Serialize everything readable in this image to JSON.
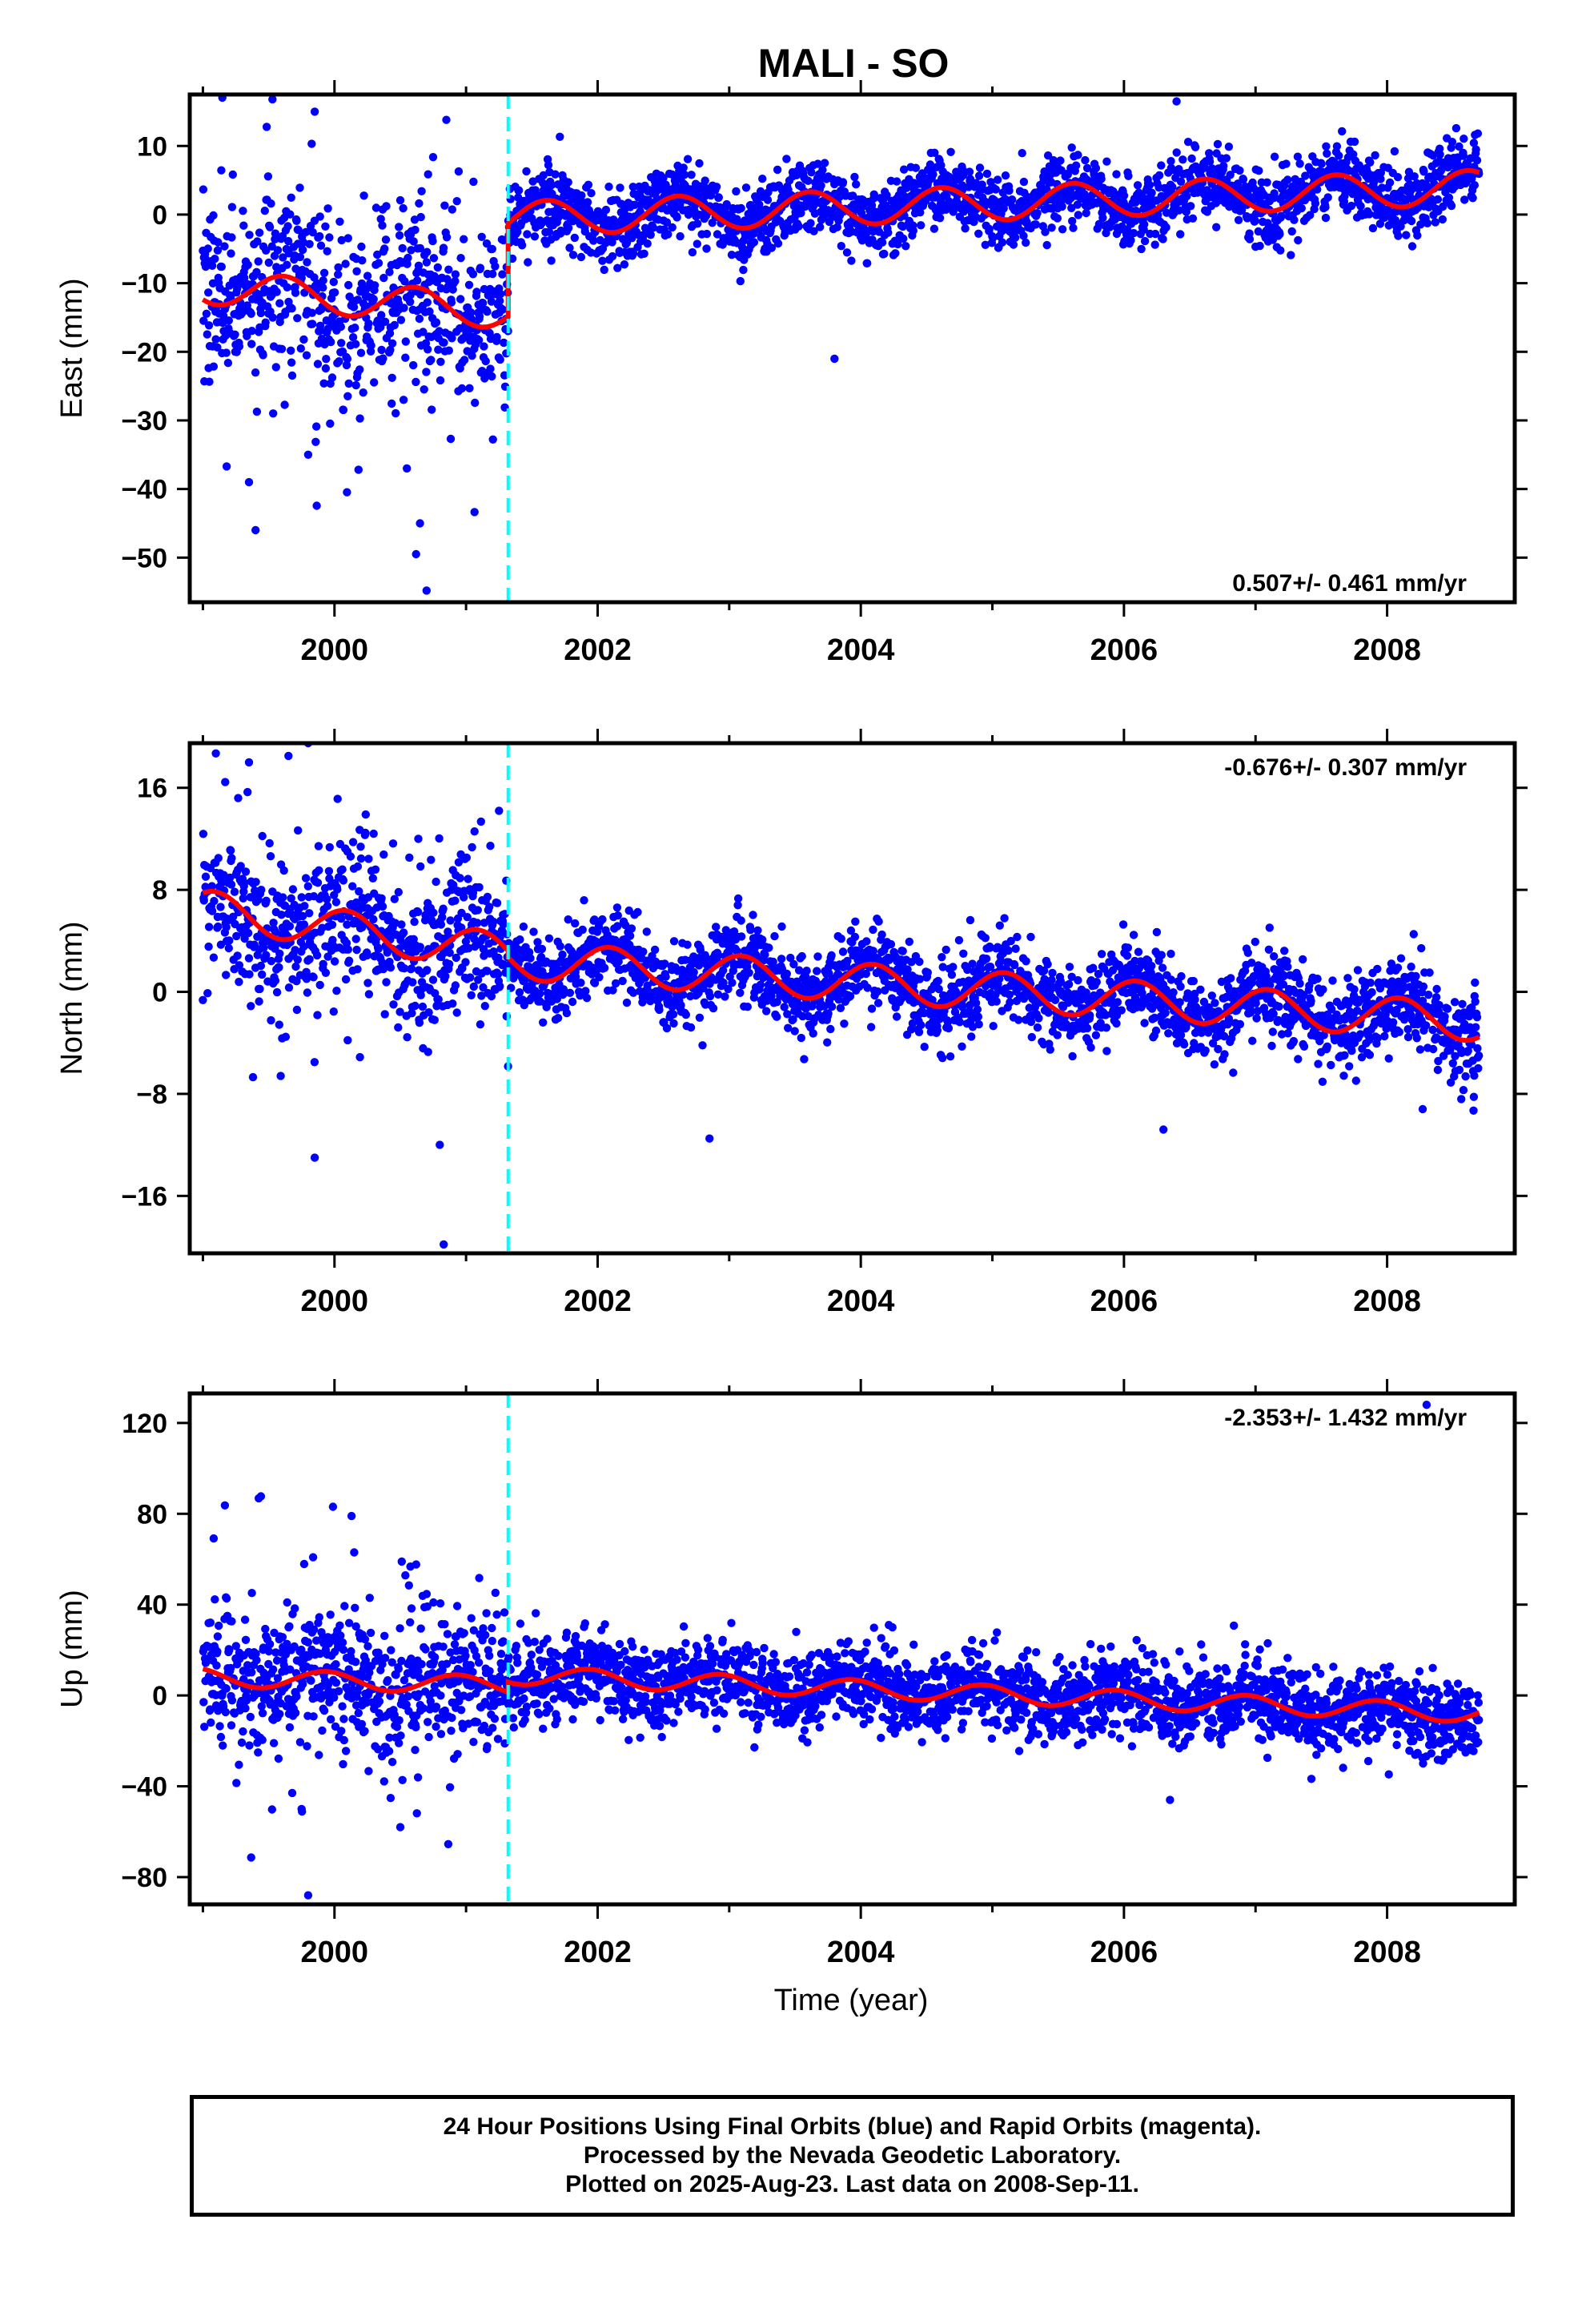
{
  "title": "MALI - SO",
  "x_axis_label": "Time (year)",
  "caption": [
    "24 Hour Positions Using Final Orbits (blue) and Rapid Orbits (magenta).",
    "Processed by the Nevada Geodetic Laboratory.",
    "Plotted on 2025-Aug-23. Last data on 2008-Sep-11."
  ],
  "colors": {
    "points": "#0000ff",
    "model": "#ff0000",
    "offset_line": "#00ffff",
    "frame": "#000000"
  },
  "chart_data": [
    {
      "type": "scatter",
      "name": "east",
      "ylabel": "East (mm)",
      "rate_label": "0.507+/- 0.461 mm/yr",
      "rate_position": "bottom-right",
      "xlim": [
        1998.9,
        2008.97
      ],
      "ylim": [
        -56.5,
        17.5
      ],
      "yticks": [
        -50,
        -40,
        -30,
        -20,
        -10,
        0,
        10
      ],
      "xticks": [
        2000,
        2002,
        2004,
        2006,
        2008
      ],
      "offset_epoch": 2001.32,
      "data_range": [
        1999.0,
        2008.7
      ],
      "model": {
        "pre": [
          -10.5,
          -1.6
        ],
        "post": [
          -0.6,
          0.62
        ],
        "amplitude": 2.5,
        "phase": 4.0
      },
      "scatter": {
        "pre_sd": 6.5,
        "post_sd": 2.6
      },
      "outliers": [
        [
          1999.4,
          -46
        ],
        [
          1999.35,
          -39
        ],
        [
          2000.62,
          -49.5
        ],
        [
          2000.7,
          -54.8
        ],
        [
          2000.65,
          -45
        ],
        [
          1999.85,
          15
        ],
        [
          2006.4,
          16.5
        ],
        [
          2003.8,
          -21
        ],
        [
          2000.55,
          -37
        ],
        [
          1999.8,
          -35
        ],
        [
          2000.85,
          13.8
        ]
      ],
      "grid": false
    },
    {
      "type": "scatter",
      "name": "north",
      "ylabel": "North (mm)",
      "rate_label": "-0.676+/- 0.307 mm/yr",
      "rate_position": "top-right",
      "xlim": [
        1998.9,
        2008.97
      ],
      "ylim": [
        -20.5,
        19.5
      ],
      "yticks": [
        -16,
        -8,
        0,
        8,
        16
      ],
      "xticks": [
        2000,
        2002,
        2004,
        2006,
        2008
      ],
      "offset_epoch": 2001.32,
      "data_range": [
        1999.0,
        2008.7
      ],
      "model": {
        "pre": [
          6.5,
          -1.5
        ],
        "post": [
          2.5,
          -0.66
        ],
        "amplitude": 1.5,
        "phase": 1.0
      },
      "scatter": {
        "pre_sd": 3.0,
        "post_sd": 1.6
      },
      "outliers": [
        [
          1999.85,
          -13
        ],
        [
          2000.83,
          -19.8
        ],
        [
          2000.8,
          -12
        ],
        [
          1999.65,
          18.5
        ],
        [
          1999.8,
          19.5
        ],
        [
          1999.35,
          18
        ],
        [
          2002.85,
          -11.5
        ],
        [
          2006.3,
          -10.8
        ],
        [
          2008.27,
          -9.2
        ]
      ],
      "grid": false
    },
    {
      "type": "scatter",
      "name": "up",
      "ylabel": "Up (mm)",
      "rate_label": "-2.353+/- 1.432 mm/yr",
      "rate_position": "top-right",
      "xlim": [
        1998.9,
        2008.97
      ],
      "ylim": [
        -92,
        133
      ],
      "yticks": [
        -80,
        -40,
        0,
        40,
        80,
        120
      ],
      "xticks": [
        2000,
        2002,
        2004,
        2006,
        2008
      ],
      "offset_epoch": 2001.32,
      "data_range": [
        1999.0,
        2008.7
      ],
      "model": {
        "pre": [
          8.0,
          -1.5
        ],
        "post": [
          9.0,
          -2.3
        ],
        "amplitude": 4.0,
        "phase": 2.0
      },
      "scatter": {
        "pre_sd": 15,
        "post_sd": 9
      },
      "outliers": [
        [
          1999.8,
          -88
        ],
        [
          2000.13,
          79
        ],
        [
          2000.5,
          -58
        ],
        [
          1999.75,
          -50
        ],
        [
          2008.3,
          128
        ],
        [
          2006.35,
          -46
        ],
        [
          2000.15,
          63
        ]
      ],
      "grid": false
    }
  ]
}
